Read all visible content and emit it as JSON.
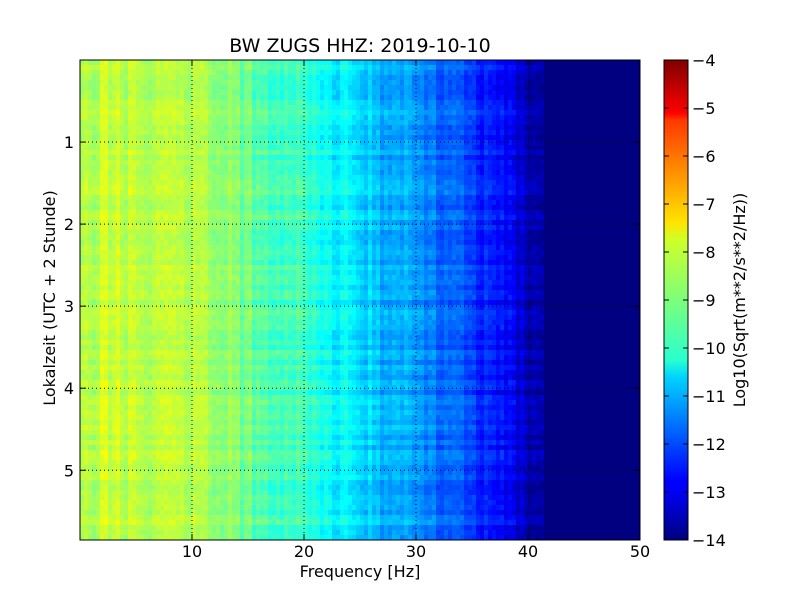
{
  "chart_data": {
    "type": "heatmap",
    "title": "BW ZUGS HHZ: 2019-10-10",
    "xlabel": "Frequency [Hz]",
    "ylabel": "Lokalzeit (UTC + 2 Stunde)",
    "xlim": [
      0,
      50
    ],
    "ylim": [
      5.85,
      0.0
    ],
    "y_inverted": true,
    "x_ticks": [
      10,
      20,
      30,
      40,
      50
    ],
    "x_tick_labels": [
      "10",
      "20",
      "30",
      "40",
      "50"
    ],
    "y_ticks": [
      1,
      2,
      3,
      4,
      5
    ],
    "y_tick_labels": [
      "1",
      "2",
      "3",
      "4",
      "5"
    ],
    "grid": true,
    "colormap": "jet",
    "colorbar": {
      "label": "Log10(Sqrt(m**2/s**2/Hz))",
      "range": [
        -14,
        -4
      ],
      "ticks": [
        -4,
        -5,
        -6,
        -7,
        -8,
        -9,
        -10,
        -11,
        -12,
        -13,
        -14
      ],
      "tick_labels": [
        "−4",
        "−5",
        "−6",
        "−7",
        "−8",
        "−9",
        "−10",
        "−11",
        "−12",
        "−13",
        "−14"
      ]
    },
    "frequency_profile": {
      "frequency_hz": [
        0,
        2,
        5,
        8,
        10,
        13,
        15,
        18,
        20,
        22,
        24,
        26,
        28,
        30,
        32,
        34,
        36,
        38,
        39,
        40,
        41,
        42,
        45,
        50
      ],
      "log_amplitude": [
        -8.6,
        -8.3,
        -8.4,
        -8.3,
        -8.4,
        -8.9,
        -9.2,
        -9.5,
        -9.7,
        -10.1,
        -10.4,
        -10.8,
        -11.1,
        -11.3,
        -11.7,
        -12.0,
        -12.4,
        -12.8,
        -13.1,
        -13.3,
        -13.7,
        -14.0,
        -14.0,
        -14.0
      ]
    }
  }
}
